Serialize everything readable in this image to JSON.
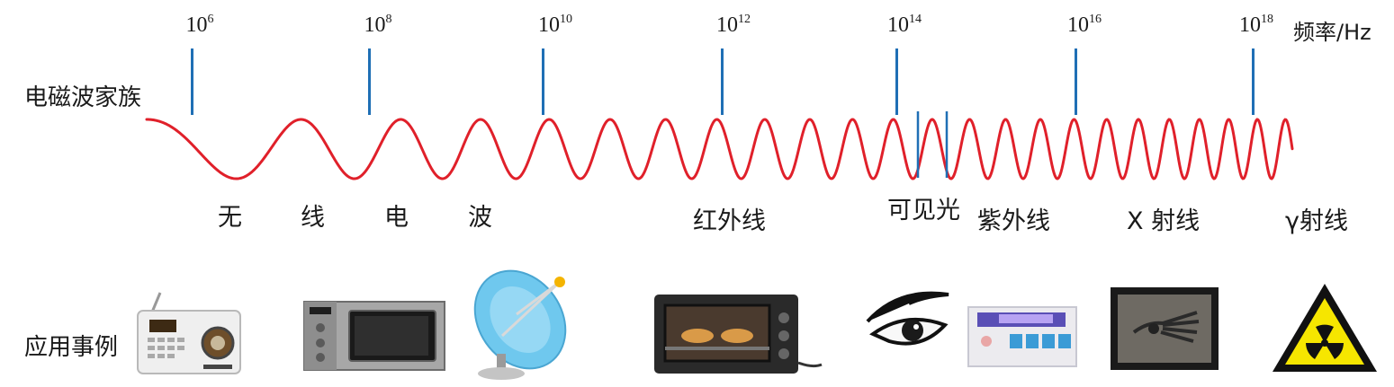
{
  "axis": {
    "unit_label": "频率/Hz",
    "ticks": [
      {
        "base": "10",
        "exp": "6"
      },
      {
        "base": "10",
        "exp": "8"
      },
      {
        "base": "10",
        "exp": "10"
      },
      {
        "base": "10",
        "exp": "12"
      },
      {
        "base": "10",
        "exp": "14"
      },
      {
        "base": "10",
        "exp": "16"
      },
      {
        "base": "10",
        "exp": "18"
      }
    ]
  },
  "row_labels": {
    "family": "电磁波家族",
    "examples": "应用事例"
  },
  "bands": {
    "radio": [
      "无",
      "线",
      "电",
      "波"
    ],
    "infrared": "红外线",
    "visible": "可见光",
    "ultraviolet": "紫外线",
    "xray": "X 射线",
    "gamma": "γ射线"
  },
  "colors": {
    "wave": "#e0202a",
    "tick": "#1f6fb5"
  },
  "icons": [
    "radio-icon",
    "microwave-oven-icon",
    "satellite-dish-icon",
    "toaster-oven-icon",
    "eye-icon",
    "uv-sterilizer-icon",
    "xray-hand-icon",
    "radiation-warning-icon"
  ]
}
